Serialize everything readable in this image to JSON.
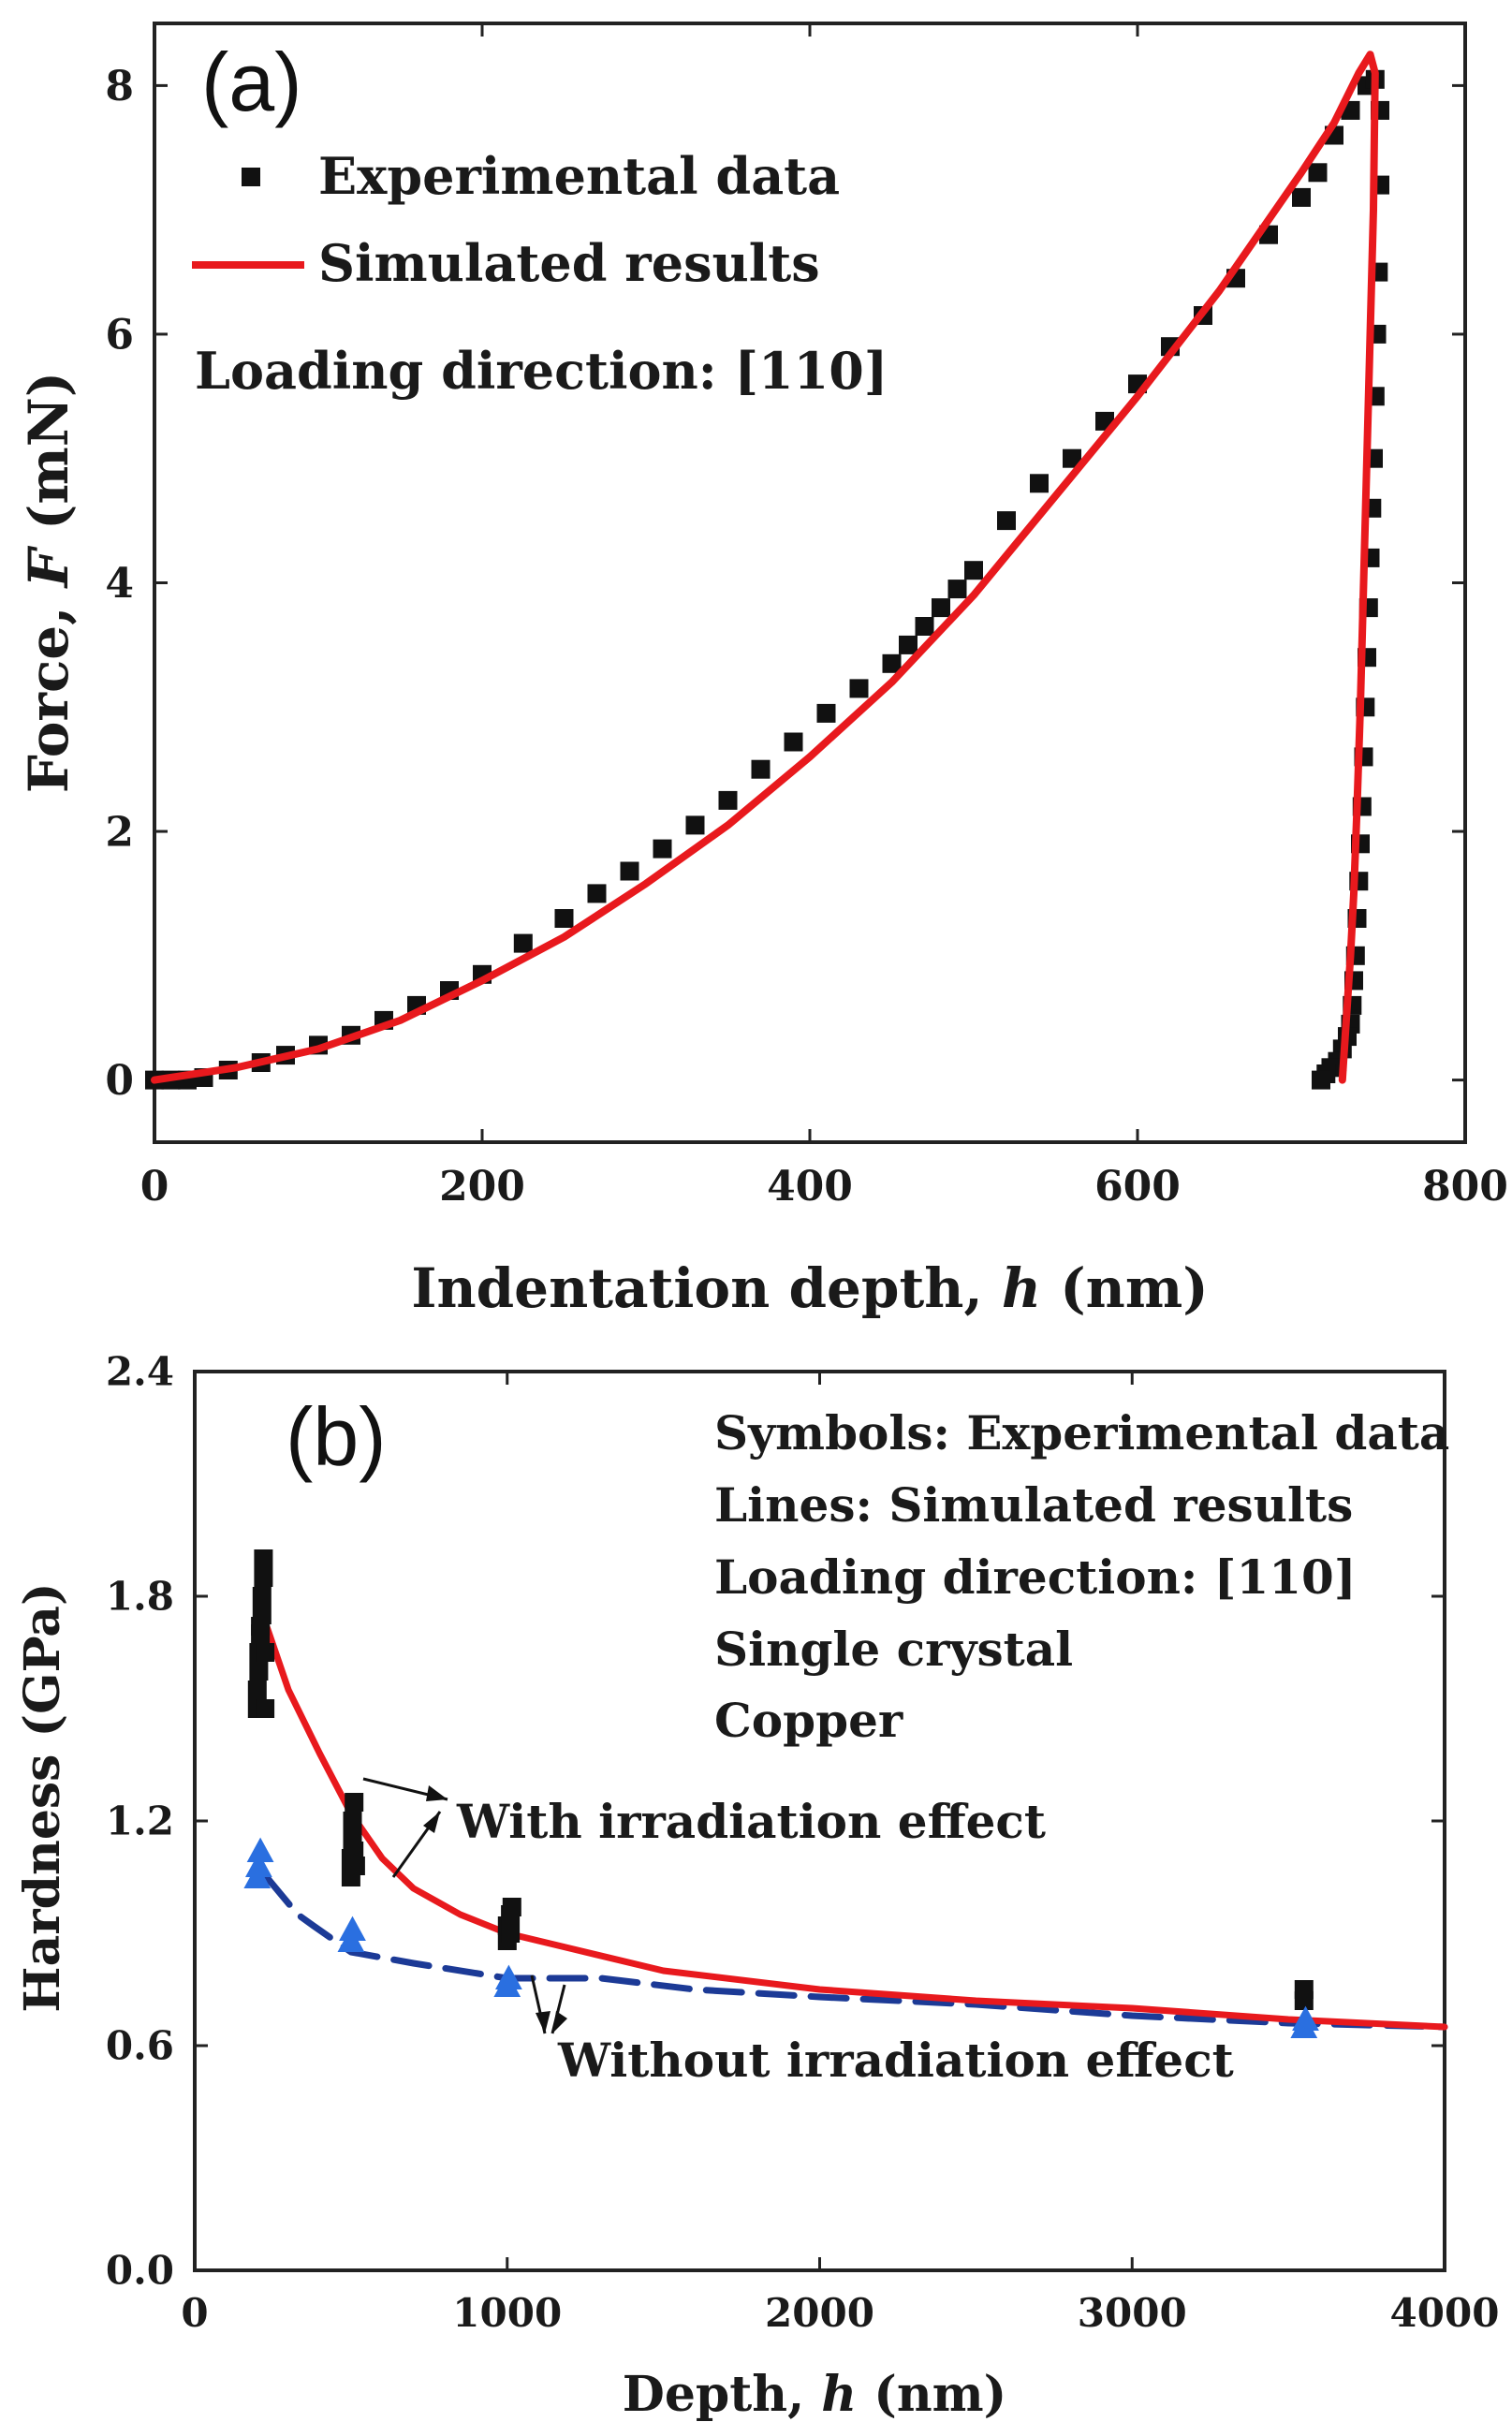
{
  "colors": {
    "experimental": "#111111",
    "simulated": "#e8191d",
    "without_sim": "#1c3a96",
    "without_exp": "#2a6fe0",
    "axis": "#222222"
  },
  "chart_data": [
    {
      "type": "scatter+line",
      "panel_label": "(a)",
      "title": "",
      "xlabel": "Indentation depth, h (nm)",
      "xlabel_main": "Indentation depth,",
      "xlabel_var": "h",
      "xlabel_unit": "(nm)",
      "ylabel": "Force, F (mN)",
      "ylabel_main": "Force,",
      "ylabel_var": "F",
      "ylabel_unit": "(mN)",
      "xlim": [
        0,
        800
      ],
      "ylim": [
        -0.5,
        8.5
      ],
      "xticks": [
        0,
        200,
        400,
        600,
        800
      ],
      "yticks": [
        0,
        2,
        4,
        6,
        8
      ],
      "xtick_labels": [
        "0",
        "200",
        "400",
        "600",
        "800"
      ],
      "ytick_labels": [
        "0",
        "2",
        "4",
        "6",
        "8"
      ],
      "legend": {
        "experimental": "Experimental data",
        "simulated": "Simulated results",
        "note": "Loading direction: [110]"
      },
      "experimental": {
        "name": "Experimental data",
        "x": [
          0,
          10,
          20,
          30,
          45,
          65,
          80,
          100,
          120,
          140,
          160,
          180,
          200,
          225,
          250,
          270,
          290,
          310,
          330,
          350,
          370,
          390,
          410,
          430,
          450,
          460,
          470,
          480,
          490,
          500,
          520,
          540,
          560,
          580,
          600,
          620,
          640,
          660,
          680,
          700,
          710,
          720,
          730,
          740,
          745,
          748,
          748,
          747,
          746,
          745,
          744,
          743,
          742,
          741,
          740,
          739,
          738,
          737,
          736,
          735,
          734,
          733,
          732,
          731,
          730,
          728,
          725,
          722,
          718,
          715,
          712
        ],
        "y": [
          0.0,
          0.0,
          0.0,
          0.02,
          0.08,
          0.14,
          0.2,
          0.28,
          0.36,
          0.48,
          0.6,
          0.72,
          0.85,
          1.1,
          1.3,
          1.5,
          1.68,
          1.86,
          2.05,
          2.25,
          2.5,
          2.72,
          2.95,
          3.15,
          3.35,
          3.5,
          3.65,
          3.8,
          3.95,
          4.1,
          4.5,
          4.8,
          5.0,
          5.3,
          5.6,
          5.9,
          6.15,
          6.45,
          6.8,
          7.1,
          7.3,
          7.6,
          7.8,
          8.0,
          8.05,
          7.8,
          7.2,
          6.5,
          6.0,
          5.5,
          5.0,
          4.6,
          4.2,
          3.8,
          3.4,
          3.0,
          2.6,
          2.2,
          1.9,
          1.6,
          1.3,
          1.0,
          0.8,
          0.6,
          0.45,
          0.35,
          0.25,
          0.15,
          0.1,
          0.05,
          0.0
        ]
      },
      "simulated": {
        "name": "Simulated results",
        "x": [
          0,
          50,
          100,
          150,
          200,
          250,
          300,
          350,
          400,
          450,
          500,
          550,
          600,
          650,
          700,
          720,
          735,
          742,
          745,
          744,
          742,
          740,
          738,
          736,
          734,
          732,
          730,
          728,
          726,
          725
        ],
        "y": [
          0.0,
          0.1,
          0.25,
          0.48,
          0.8,
          1.15,
          1.58,
          2.05,
          2.6,
          3.2,
          3.9,
          4.7,
          5.5,
          6.35,
          7.3,
          7.7,
          8.1,
          8.25,
          8.1,
          7.0,
          6.0,
          5.0,
          4.0,
          3.0,
          2.2,
          1.5,
          1.0,
          0.6,
          0.2,
          0.0
        ]
      }
    },
    {
      "type": "scatter+line",
      "panel_label": "(b)",
      "title": "",
      "xlabel": "Depth, h (nm)",
      "xlabel_main": "Depth,",
      "xlabel_var": "h",
      "xlabel_unit": "(nm)",
      "ylabel": "Hardness (GPa)",
      "xlim": [
        0,
        4000
      ],
      "ylim": [
        0.0,
        2.4
      ],
      "xticks": [
        0,
        1000,
        2000,
        3000,
        4000
      ],
      "yticks": [
        0.0,
        0.6,
        1.2,
        1.8,
        2.4
      ],
      "xtick_labels": [
        "0",
        "1000",
        "2000",
        "3000",
        "4000"
      ],
      "ytick_labels": [
        "0.0",
        "0.6",
        "1.2",
        "1.8",
        "2.4"
      ],
      "notes": [
        "Symbols: Experimental data",
        "Lines: Simulated results",
        "Loading direction: [110]",
        "Single crystal",
        "Copper"
      ],
      "annotations": {
        "with": "With irradiation effect",
        "without": "Without irradiation effect"
      },
      "experimental_with": {
        "name": "With irradiation effect (experimental)",
        "x": [
          200,
          200,
          205,
          205,
          210,
          210,
          215,
          215,
          220,
          220,
          225,
          225,
          500,
          500,
          505,
          505,
          510,
          510,
          515,
          1000,
          1000,
          1010,
          1010,
          1015,
          3550,
          3550
        ],
        "y": [
          1.5,
          1.55,
          1.6,
          1.65,
          1.7,
          1.72,
          1.75,
          1.8,
          1.85,
          1.9,
          1.65,
          1.5,
          1.05,
          1.1,
          1.15,
          1.2,
          1.25,
          1.12,
          1.08,
          0.88,
          0.92,
          0.95,
          0.9,
          0.97,
          0.72,
          0.75
        ]
      },
      "experimental_without": {
        "name": "Without irradiation effect (experimental)",
        "x": [
          200,
          205,
          210,
          500,
          505,
          1000,
          1005,
          3550,
          3555
        ],
        "y": [
          1.05,
          1.08,
          1.12,
          0.88,
          0.91,
          0.76,
          0.78,
          0.65,
          0.67
        ]
      },
      "simulated_with": {
        "name": "With irradiation effect (simulated)",
        "x": [
          230,
          300,
          400,
          500,
          600,
          700,
          850,
          1000,
          1200,
          1500,
          2000,
          2500,
          3000,
          3500,
          4000
        ],
        "y": [
          1.72,
          1.55,
          1.38,
          1.22,
          1.1,
          1.02,
          0.95,
          0.9,
          0.86,
          0.8,
          0.75,
          0.72,
          0.7,
          0.67,
          0.65
        ]
      },
      "simulated_without": {
        "name": "Without irradiation effect (simulated)",
        "x": [
          230,
          280,
          330,
          380,
          500,
          700,
          1000,
          1300,
          1600,
          2000,
          2500,
          3000,
          3500,
          4000
        ],
        "y": [
          1.05,
          1.0,
          0.95,
          0.92,
          0.85,
          0.82,
          0.78,
          0.78,
          0.75,
          0.73,
          0.71,
          0.68,
          0.66,
          0.65
        ]
      }
    }
  ]
}
